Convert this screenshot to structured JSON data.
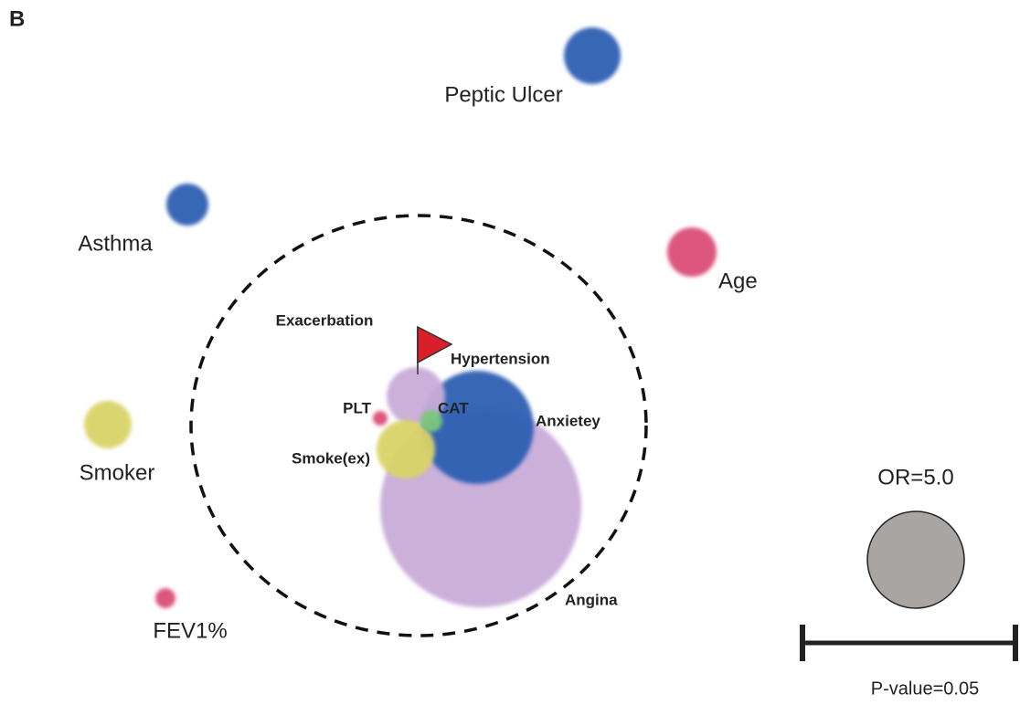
{
  "panel_label": "B",
  "nodes": [
    {
      "label": "Peptic Ulcer",
      "color": "#2f5fb3"
    },
    {
      "label": "Asthma",
      "color": "#2f5fb3"
    },
    {
      "label": "Age",
      "color": "#db4d78"
    },
    {
      "label": "Smoker",
      "color": "#d9d467"
    },
    {
      "label": "FEV1%",
      "color": "#db4d78"
    },
    {
      "label": "Angina",
      "color": "#c9acd9"
    },
    {
      "label": "Anxietey",
      "color": "#2f5fb3"
    },
    {
      "label": "Exacerbation",
      "color": "#c9acd9"
    },
    {
      "label": "Smoke(ex)",
      "color": "#d9d467"
    },
    {
      "label": "CAT",
      "color": "#7cc77c"
    },
    {
      "label": "PLT",
      "color": "#db4d78"
    },
    {
      "label": "Hypertension",
      "color": "#d9202a"
    }
  ],
  "legend": {
    "size_label": "OR=5.0",
    "bar_label": "P-value=0.05"
  }
}
